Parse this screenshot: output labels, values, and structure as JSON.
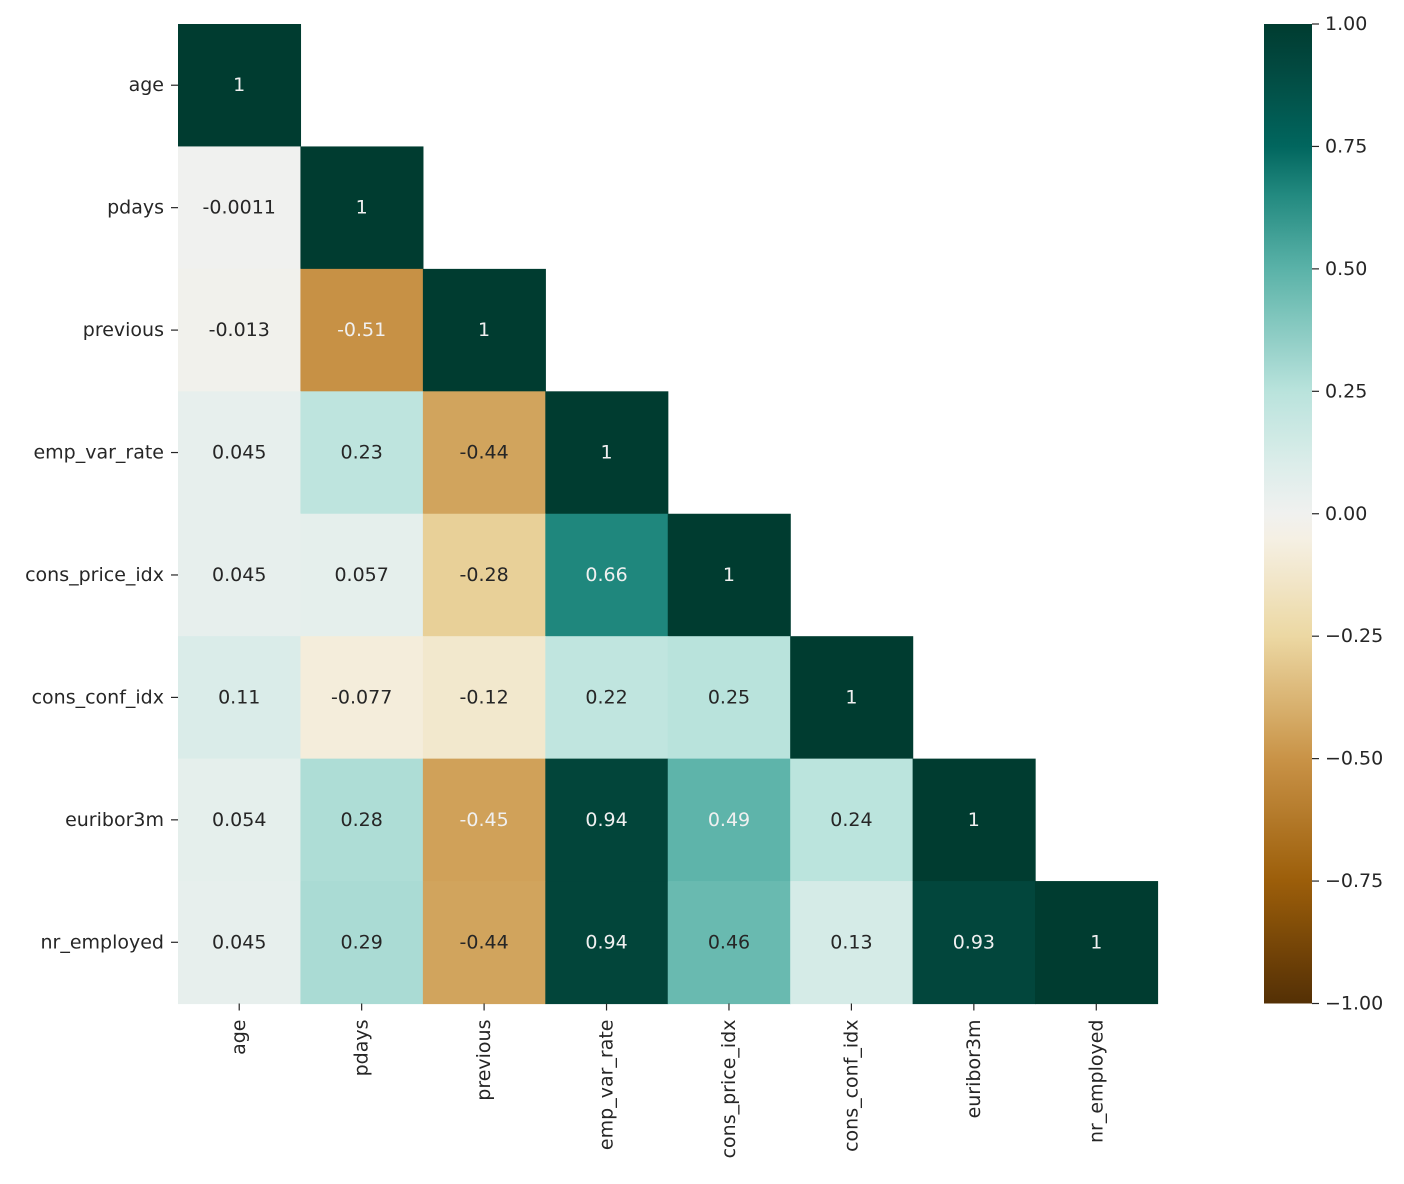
{
  "chart_data": {
    "type": "heatmap",
    "title": "",
    "xlabel": "",
    "ylabel": "",
    "mask": "upper-triangle-excluding-diagonal",
    "variables": [
      "age",
      "pdays",
      "previous",
      "emp_var_rate",
      "cons_price_idx",
      "cons_conf_idx",
      "euribor3m",
      "nr_employed"
    ],
    "x_tick_labels": [
      "age",
      "pdays",
      "previous",
      "emp_var_rate",
      "cons_price_idx",
      "cons_conf_idx",
      "euribor3m",
      "nr_employed"
    ],
    "y_tick_labels": [
      "age",
      "pdays",
      "previous",
      "emp_var_rate",
      "cons_price_idx",
      "cons_conf_idx",
      "euribor3m",
      "nr_employed"
    ],
    "cells": [
      {
        "row": "age",
        "col": "age",
        "value": 1,
        "label": "1"
      },
      {
        "row": "pdays",
        "col": "age",
        "value": -0.0011,
        "label": "-0.0011"
      },
      {
        "row": "pdays",
        "col": "pdays",
        "value": 1,
        "label": "1"
      },
      {
        "row": "previous",
        "col": "age",
        "value": -0.013,
        "label": "-0.013"
      },
      {
        "row": "previous",
        "col": "pdays",
        "value": -0.51,
        "label": "-0.51"
      },
      {
        "row": "previous",
        "col": "previous",
        "value": 1,
        "label": "1"
      },
      {
        "row": "emp_var_rate",
        "col": "age",
        "value": 0.045,
        "label": "0.045"
      },
      {
        "row": "emp_var_rate",
        "col": "pdays",
        "value": 0.23,
        "label": "0.23"
      },
      {
        "row": "emp_var_rate",
        "col": "previous",
        "value": -0.44,
        "label": "-0.44"
      },
      {
        "row": "emp_var_rate",
        "col": "emp_var_rate",
        "value": 1,
        "label": "1"
      },
      {
        "row": "cons_price_idx",
        "col": "age",
        "value": 0.045,
        "label": "0.045"
      },
      {
        "row": "cons_price_idx",
        "col": "pdays",
        "value": 0.057,
        "label": "0.057"
      },
      {
        "row": "cons_price_idx",
        "col": "previous",
        "value": -0.28,
        "label": "-0.28"
      },
      {
        "row": "cons_price_idx",
        "col": "emp_var_rate",
        "value": 0.66,
        "label": "0.66"
      },
      {
        "row": "cons_price_idx",
        "col": "cons_price_idx",
        "value": 1,
        "label": "1"
      },
      {
        "row": "cons_conf_idx",
        "col": "age",
        "value": 0.11,
        "label": "0.11"
      },
      {
        "row": "cons_conf_idx",
        "col": "pdays",
        "value": -0.077,
        "label": "-0.077"
      },
      {
        "row": "cons_conf_idx",
        "col": "previous",
        "value": -0.12,
        "label": "-0.12"
      },
      {
        "row": "cons_conf_idx",
        "col": "emp_var_rate",
        "value": 0.22,
        "label": "0.22"
      },
      {
        "row": "cons_conf_idx",
        "col": "cons_price_idx",
        "value": 0.25,
        "label": "0.25"
      },
      {
        "row": "cons_conf_idx",
        "col": "cons_conf_idx",
        "value": 1,
        "label": "1"
      },
      {
        "row": "euribor3m",
        "col": "age",
        "value": 0.054,
        "label": "0.054"
      },
      {
        "row": "euribor3m",
        "col": "pdays",
        "value": 0.28,
        "label": "0.28"
      },
      {
        "row": "euribor3m",
        "col": "previous",
        "value": -0.45,
        "label": "-0.45"
      },
      {
        "row": "euribor3m",
        "col": "emp_var_rate",
        "value": 0.94,
        "label": "0.94"
      },
      {
        "row": "euribor3m",
        "col": "cons_price_idx",
        "value": 0.49,
        "label": "0.49"
      },
      {
        "row": "euribor3m",
        "col": "cons_conf_idx",
        "value": 0.24,
        "label": "0.24"
      },
      {
        "row": "euribor3m",
        "col": "euribor3m",
        "value": 1,
        "label": "1"
      },
      {
        "row": "nr_employed",
        "col": "age",
        "value": 0.045,
        "label": "0.045"
      },
      {
        "row": "nr_employed",
        "col": "pdays",
        "value": 0.29,
        "label": "0.29"
      },
      {
        "row": "nr_employed",
        "col": "previous",
        "value": -0.44,
        "label": "-0.44"
      },
      {
        "row": "nr_employed",
        "col": "emp_var_rate",
        "value": 0.94,
        "label": "0.94"
      },
      {
        "row": "nr_employed",
        "col": "cons_price_idx",
        "value": 0.46,
        "label": "0.46"
      },
      {
        "row": "nr_employed",
        "col": "cons_conf_idx",
        "value": 0.13,
        "label": "0.13"
      },
      {
        "row": "nr_employed",
        "col": "euribor3m",
        "value": 0.93,
        "label": "0.93"
      },
      {
        "row": "nr_employed",
        "col": "nr_employed",
        "value": 1,
        "label": "1"
      }
    ],
    "colormap": {
      "name": "BrBG",
      "vmin": -1,
      "vmax": 1,
      "stops": [
        {
          "value": -1.0,
          "color": "#543005"
        },
        {
          "value": -0.75,
          "color": "#9c5e0a"
        },
        {
          "value": -0.5,
          "color": "#c99347"
        },
        {
          "value": -0.25,
          "color": "#ecd8a3"
        },
        {
          "value": -0.05,
          "color": "#f5f0e4"
        },
        {
          "value": 0.0,
          "color": "#f0f1ef"
        },
        {
          "value": 0.1,
          "color": "#dcedea"
        },
        {
          "value": 0.25,
          "color": "#b9e3dc"
        },
        {
          "value": 0.5,
          "color": "#5ab2a8"
        },
        {
          "value": 0.66,
          "color": "#1f877d"
        },
        {
          "value": 0.75,
          "color": "#01665e"
        },
        {
          "value": 0.93,
          "color": "#02463c"
        },
        {
          "value": 1.0,
          "color": "#003c30"
        }
      ],
      "light_text_color": "#f0f0f0",
      "dark_text_color": "#262626"
    },
    "colorbar": {
      "range": [
        -1,
        1
      ],
      "ticks": [
        1.0,
        0.75,
        0.5,
        0.25,
        0.0,
        -0.25,
        -0.5,
        -0.75,
        -1.0
      ],
      "tick_labels": [
        "1.00",
        "0.75",
        "0.50",
        "0.25",
        "0.00",
        "−0.25",
        "−0.50",
        "−0.75",
        "−1.00"
      ],
      "position": "right"
    },
    "grid": false,
    "legend": "none"
  }
}
